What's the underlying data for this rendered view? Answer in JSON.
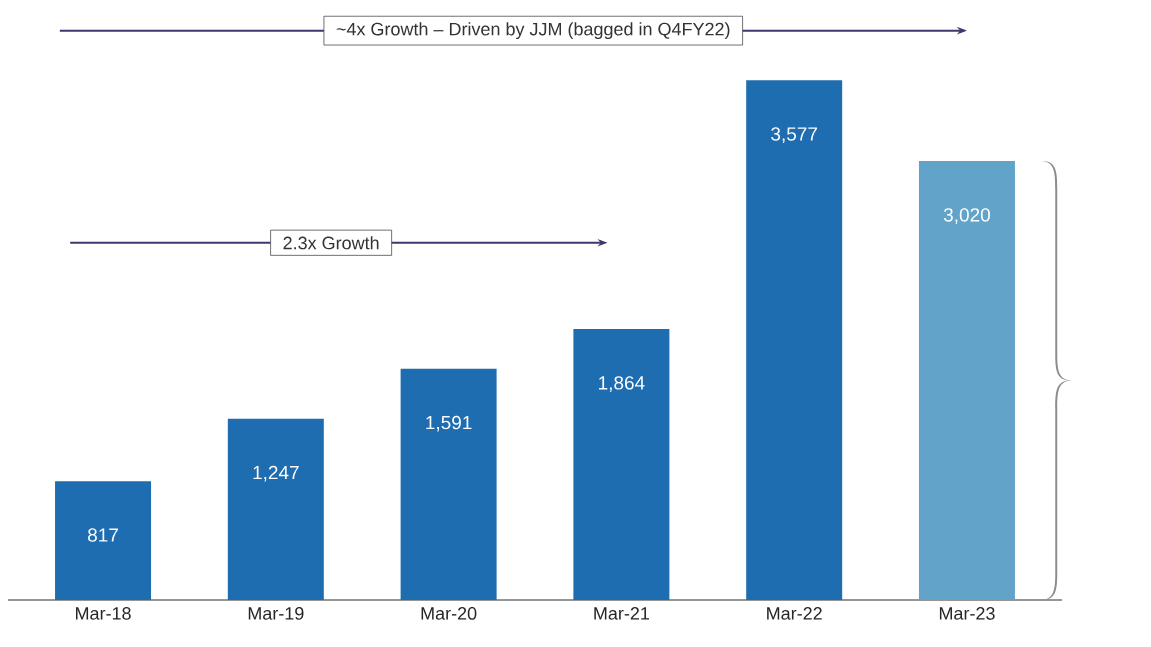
{
  "chart_data": {
    "type": "bar",
    "categories": [
      "Mar-18",
      "Mar-19",
      "Mar-20",
      "Mar-21",
      "Mar-22",
      "Mar-23"
    ],
    "values": [
      817,
      1247,
      1591,
      1864,
      3577,
      3020
    ],
    "colors": [
      "#1f6db1",
      "#1f6db1",
      "#1f6db1",
      "#1f6db1",
      "#1f6db1",
      "#62a3c9"
    ],
    "value_labels": [
      "817",
      "1,247",
      "1,591",
      "1,864",
      "3,577",
      "3,020"
    ],
    "annotations": [
      "~4x Growth – Driven by JJM (bagged in Q4FY22)",
      "2.3x Growth"
    ]
  }
}
